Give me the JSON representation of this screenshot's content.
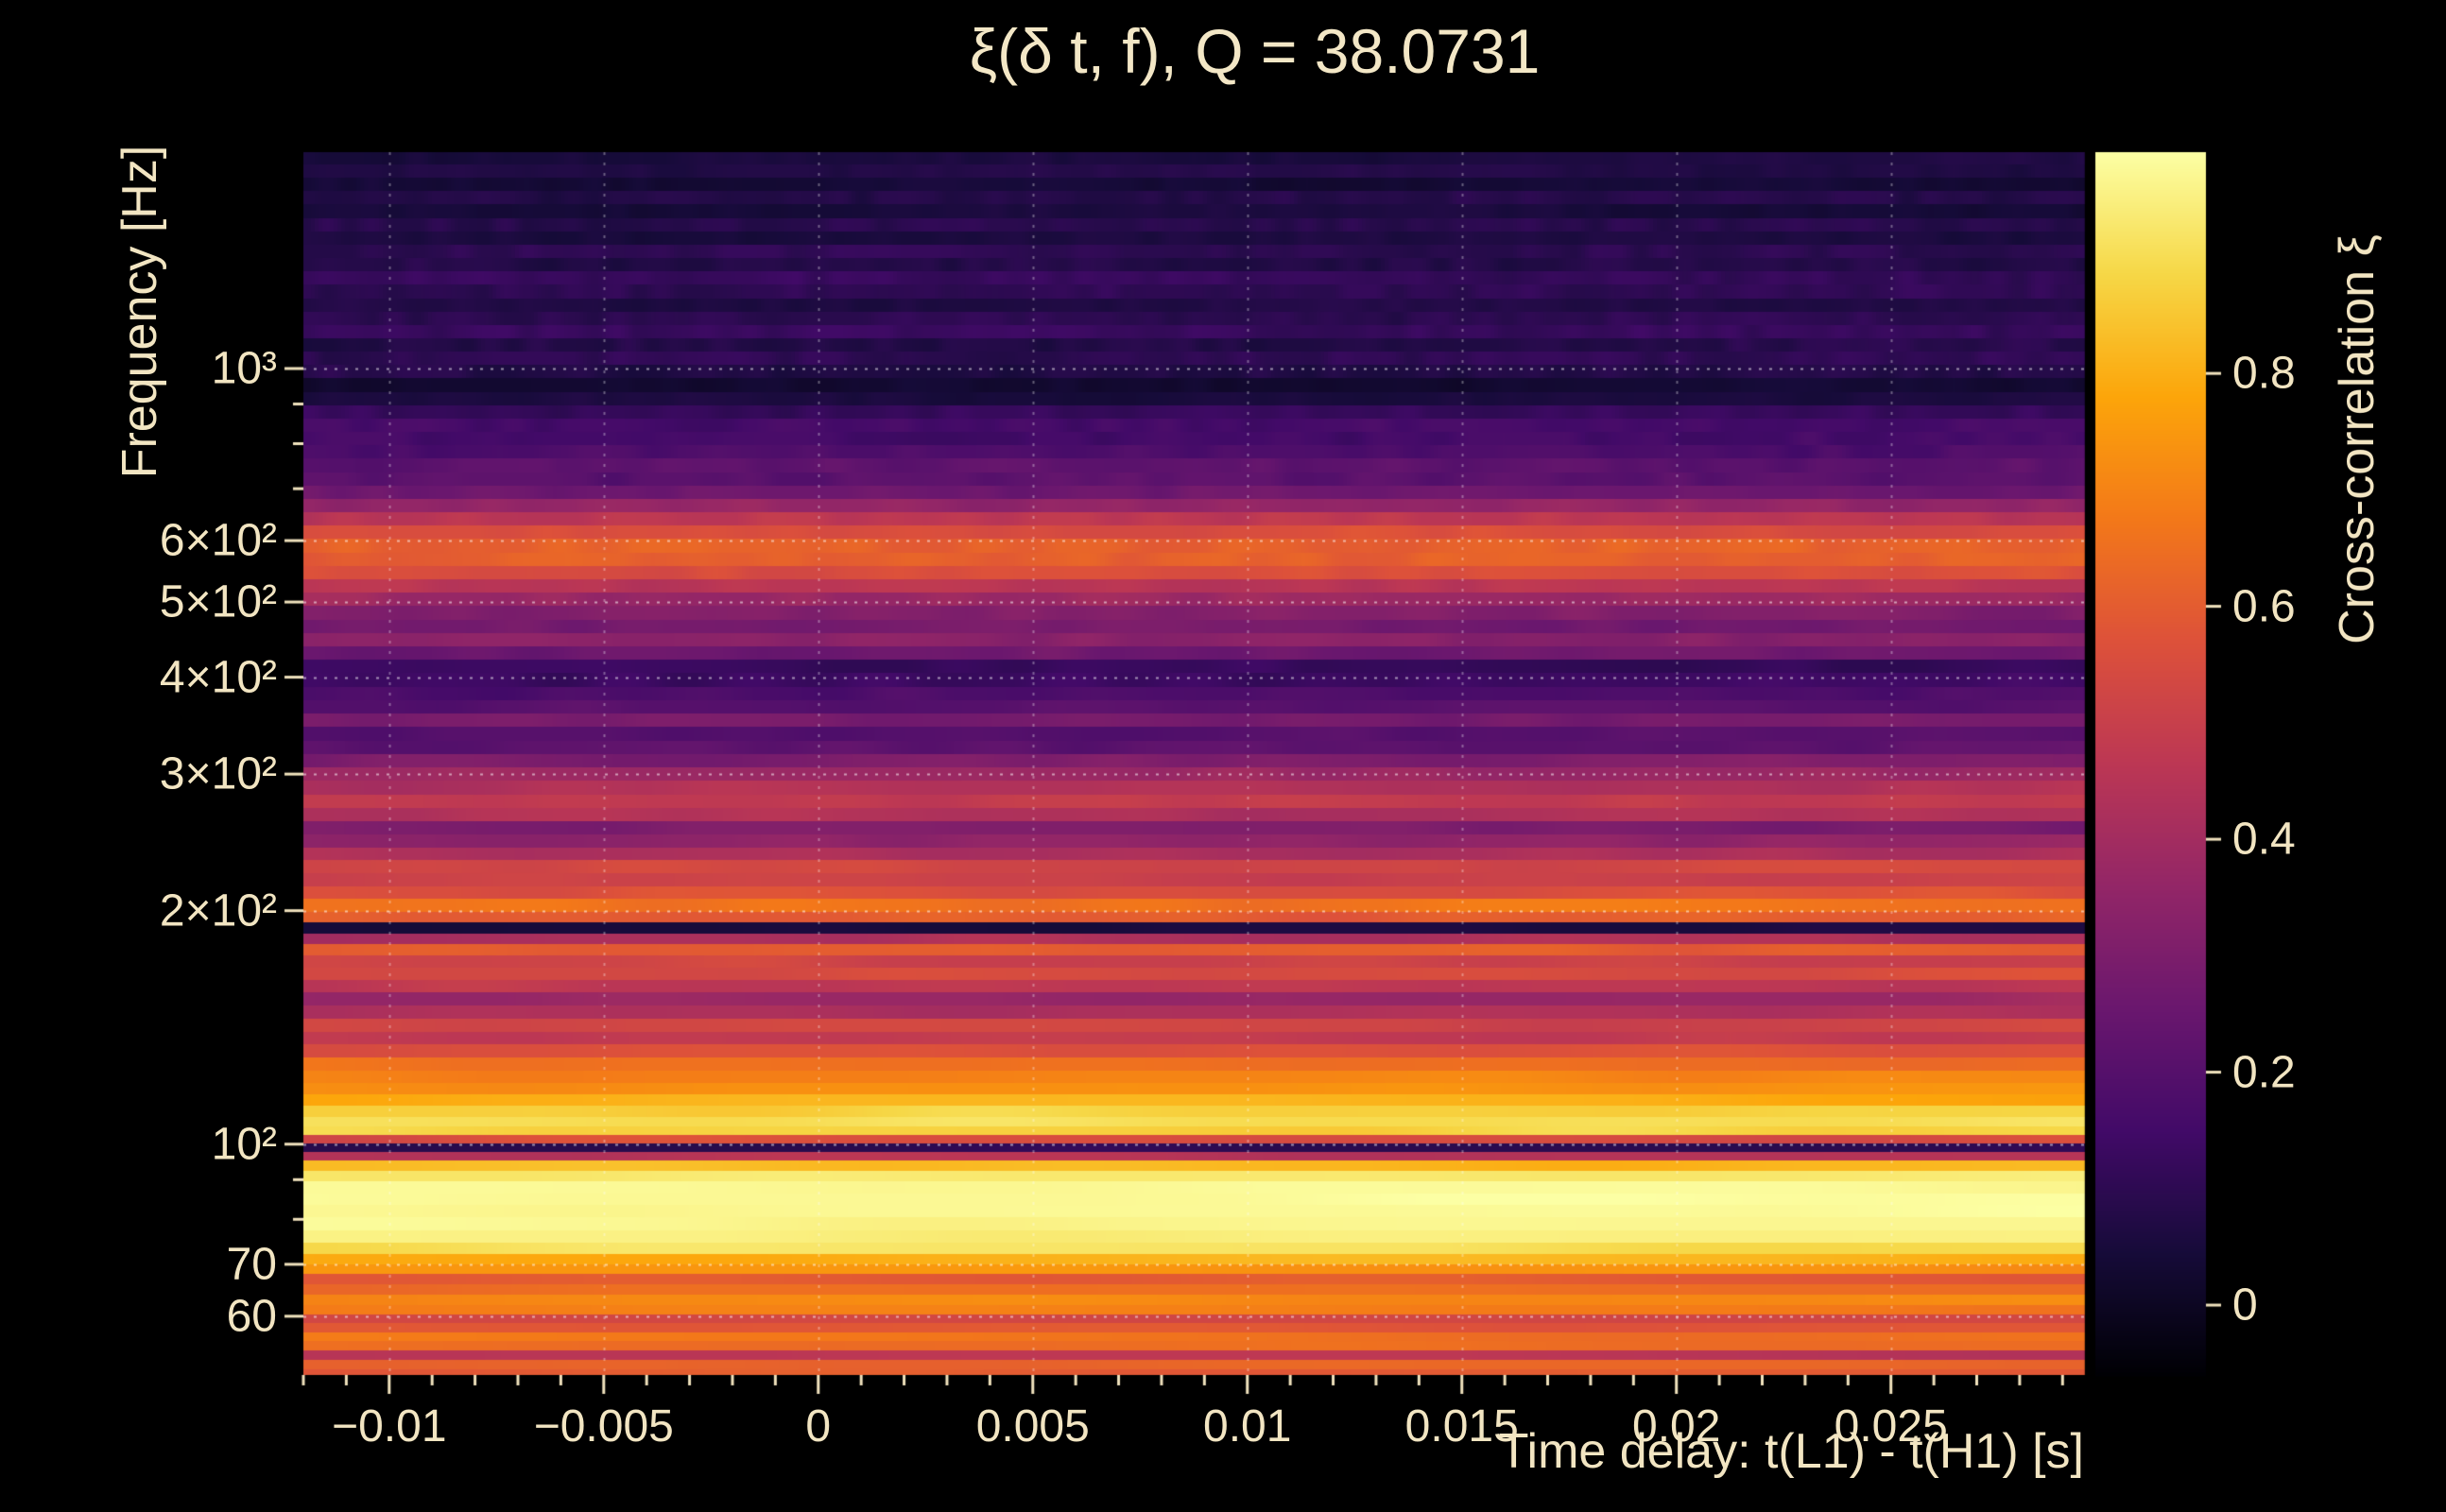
{
  "chart_data": {
    "type": "heatmap",
    "title": "ξ(δ t, f), Q = 38.0731",
    "q_value": 38.0731,
    "xlabel": "Time delay: t(L1) - t(H1) [s]",
    "ylabel": "Frequency [Hz]",
    "colorbar_label": "Cross-correlation ξ",
    "colormap": "inferno",
    "y_scale": "log",
    "grid": "dotted-white",
    "x_range": [
      -0.012,
      0.0295
    ],
    "y_range_hz": [
      50.4,
      1901
    ],
    "color_range": [
      -0.06,
      0.99
    ],
    "x_ticks": [
      {
        "value": -0.01,
        "label": "−0.01"
      },
      {
        "value": -0.005,
        "label": "−0.005"
      },
      {
        "value": 0,
        "label": "0"
      },
      {
        "value": 0.005,
        "label": "0.005"
      },
      {
        "value": 0.01,
        "label": "0.01"
      },
      {
        "value": 0.015,
        "label": "0.015"
      },
      {
        "value": 0.02,
        "label": "0.02"
      },
      {
        "value": 0.025,
        "label": "0.025"
      }
    ],
    "x_minor_step": 0.001,
    "y_ticks": [
      {
        "value": 1000,
        "label": "10³"
      },
      {
        "value": 600,
        "label": "6×10²"
      },
      {
        "value": 500,
        "label": "5×10²"
      },
      {
        "value": 400,
        "label": "4×10²"
      },
      {
        "value": 300,
        "label": "3×10²"
      },
      {
        "value": 200,
        "label": "2×10²"
      },
      {
        "value": 100,
        "label": "10²"
      },
      {
        "value": 70,
        "label": "70"
      },
      {
        "value": 60,
        "label": "60"
      }
    ],
    "y_minor_ticks": [
      80,
      90,
      700,
      800,
      900
    ],
    "colorbar_ticks": [
      {
        "value": 0.8,
        "label": "0.8"
      },
      {
        "value": 0.6,
        "label": "0.6"
      },
      {
        "value": 0.4,
        "label": "0.4"
      },
      {
        "value": 0.2,
        "label": "0.2"
      },
      {
        "value": 0,
        "label": "0"
      }
    ],
    "bands": [
      [
        50.5,
        0.6
      ],
      [
        52,
        0.63
      ],
      [
        53.5,
        0.45
      ],
      [
        55,
        0.64
      ],
      [
        56.5,
        0.66
      ],
      [
        58,
        0.58
      ],
      [
        59.5,
        0.52
      ],
      [
        61,
        0.68
      ],
      [
        63,
        0.71
      ],
      [
        65,
        0.64
      ],
      [
        67,
        0.6
      ],
      [
        69,
        0.73
      ],
      [
        71,
        0.8
      ],
      [
        73.5,
        0.9
      ],
      [
        76,
        0.95
      ],
      [
        79,
        0.97
      ],
      [
        82,
        0.98
      ],
      [
        85,
        0.98
      ],
      [
        88,
        0.97
      ],
      [
        91,
        0.93
      ],
      [
        94,
        0.82
      ],
      [
        96.5,
        0.45
      ],
      [
        99,
        0.1
      ],
      [
        101.5,
        0.55
      ],
      [
        104,
        0.88
      ],
      [
        107,
        0.91
      ],
      [
        110,
        0.87
      ],
      [
        114,
        0.8
      ],
      [
        118,
        0.73
      ],
      [
        122,
        0.7
      ],
      [
        127,
        0.65
      ],
      [
        132,
        0.56
      ],
      [
        137,
        0.48
      ],
      [
        142,
        0.52
      ],
      [
        148,
        0.42
      ],
      [
        154,
        0.38
      ],
      [
        160,
        0.47
      ],
      [
        166,
        0.55
      ],
      [
        172,
        0.52
      ],
      [
        178,
        0.6
      ],
      [
        184,
        0.42
      ],
      [
        190,
        0.05
      ],
      [
        196,
        0.6
      ],
      [
        203,
        0.66
      ],
      [
        211,
        0.56
      ],
      [
        219,
        0.5
      ],
      [
        228,
        0.53
      ],
      [
        237,
        0.42
      ],
      [
        246,
        0.35
      ],
      [
        256,
        0.3
      ],
      [
        266,
        0.43
      ],
      [
        277,
        0.48
      ],
      [
        288,
        0.43
      ],
      [
        300,
        0.38
      ],
      [
        312,
        0.3
      ],
      [
        325,
        0.22
      ],
      [
        338,
        0.2
      ],
      [
        352,
        0.28
      ],
      [
        366,
        0.2
      ],
      [
        381,
        0.18
      ],
      [
        397,
        0.14
      ],
      [
        413,
        0.12
      ],
      [
        430,
        0.26
      ],
      [
        447,
        0.33
      ],
      [
        465,
        0.28
      ],
      [
        484,
        0.31
      ],
      [
        504,
        0.38
      ],
      [
        524,
        0.46
      ],
      [
        546,
        0.56
      ],
      [
        568,
        0.61
      ],
      [
        591,
        0.62
      ],
      [
        615,
        0.55
      ],
      [
        640,
        0.46
      ],
      [
        666,
        0.36
      ],
      [
        693,
        0.26
      ],
      [
        721,
        0.21
      ],
      [
        750,
        0.22
      ],
      [
        781,
        0.18
      ],
      [
        812,
        0.15
      ],
      [
        845,
        0.16
      ],
      [
        879,
        0.12
      ],
      [
        915,
        0.06
      ],
      [
        952,
        0.03
      ],
      [
        991,
        0.08
      ],
      [
        1031,
        0.1
      ],
      [
        1073,
        0.08
      ],
      [
        1116,
        0.12
      ],
      [
        1161,
        0.1
      ],
      [
        1208,
        0.07
      ],
      [
        1257,
        0.1
      ],
      [
        1308,
        0.12
      ],
      [
        1361,
        0.08
      ],
      [
        1416,
        0.1
      ],
      [
        1473,
        0.06
      ],
      [
        1533,
        0.09
      ],
      [
        1595,
        0.05
      ],
      [
        1660,
        0.08
      ],
      [
        1727,
        0.04
      ],
      [
        1797,
        0.07
      ],
      [
        1870,
        0.06
      ]
    ]
  }
}
